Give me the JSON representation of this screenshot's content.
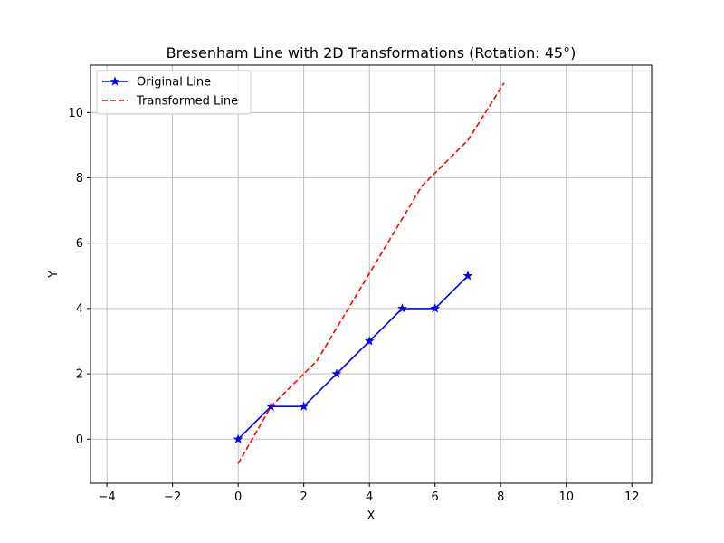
{
  "chart_data": {
    "type": "line",
    "title": "Bresenham Line with 2D Transformations (Rotation: 45°)",
    "xlabel": "X",
    "ylabel": "Y",
    "xlim": [
      -4.5,
      12.6
    ],
    "ylim": [
      -1.35,
      11.45
    ],
    "xticks": [
      -4,
      -2,
      0,
      2,
      4,
      6,
      8,
      10,
      12
    ],
    "yticks": [
      0,
      2,
      4,
      6,
      8,
      10
    ],
    "grid": true,
    "legend_position": "top-left",
    "series": [
      {
        "name": "Original Line",
        "color": "#0000ff",
        "line_style": "solid",
        "marker": "star",
        "x": [
          0,
          1,
          2,
          3,
          4,
          5,
          6,
          7
        ],
        "y": [
          0,
          1,
          1,
          2,
          3,
          4,
          4,
          5
        ]
      },
      {
        "name": "Transformed Line",
        "color": "#ff0000",
        "line_style": "dashed",
        "marker": "none",
        "x": [
          0.0,
          1.0,
          2.4,
          5.6,
          7.0,
          8.1
        ],
        "y": [
          -0.75,
          1.0,
          2.4,
          7.75,
          9.15,
          10.9
        ]
      }
    ]
  }
}
